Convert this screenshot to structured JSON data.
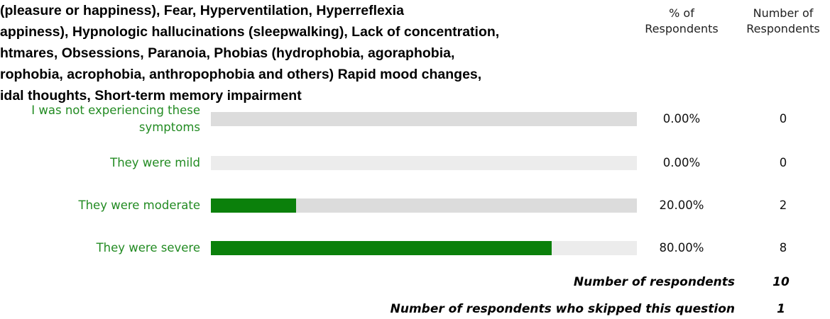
{
  "title_lines": [
    "(pleasure or happiness), Fear, Hyperventilation, Hyperreflexia",
    "appiness), Hypnologic hallucinations  (sleepwalking), Lack of concentration,",
    "htmares, Obsessions, Paranoia, Phobias (hydrophobia, agoraphobia,",
    "rophobia,   acrophobia, anthropophobia and others) Rapid mood changes,",
    "idal thoughts, Short-term memory impairment"
  ],
  "chart_data": {
    "type": "bar",
    "orientation": "horizontal",
    "categories": [
      "I was not experiencing these symptoms",
      "They were mild",
      "They were moderate",
      "They were severe"
    ],
    "values": [
      0,
      0,
      20,
      80
    ],
    "value_labels": [
      "0.00%",
      "0.00%",
      "20.00%",
      "80.00%"
    ],
    "counts": [
      0,
      0,
      2,
      8
    ],
    "color": "#0b800b",
    "xlim": [
      0,
      100
    ],
    "column_headers": [
      "% of Respondents",
      "Number of Respondents"
    ]
  },
  "footer": [
    {
      "label": "Number of respondents",
      "value": 10
    },
    {
      "label": "Number of respondents who skipped this question",
      "value": 1
    }
  ]
}
